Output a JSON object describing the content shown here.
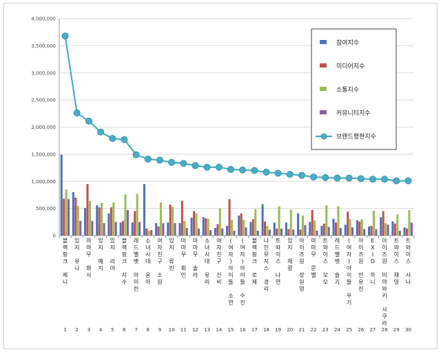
{
  "chart_data": {
    "type": "bar",
    "title": "",
    "xlabel": "",
    "ylabel": "",
    "ylim": [
      0,
      4000000
    ],
    "yticks": [
      "0",
      "500,000",
      "1,000,000",
      "1,500,000",
      "2,000,000",
      "2,500,000",
      "3,000,000",
      "3,500,000",
      "4,000,000"
    ],
    "legend_position": "top-right",
    "grid": true,
    "indices": [
      "1",
      "2",
      "3",
      "4",
      "5",
      "6",
      "7",
      "8",
      "9",
      "10",
      "11",
      "12",
      "13",
      "14",
      "15",
      "16",
      "17",
      "18",
      "19",
      "20",
      "21",
      "22",
      "23",
      "24",
      "25",
      "26",
      "27",
      "28",
      "29",
      "30"
    ],
    "categories": [
      "블랙핑크 제니",
      "있지 유나",
      "마마무 화사",
      "있지 예지",
      "있지 리아",
      "블랙핑크 지수",
      "레드벨벳 아이린",
      "소녀시대 윤아",
      "여자친구 소원",
      "있지 류진",
      "마마무 휘인",
      "마마무 솔라",
      "소녀시대 유리",
      "여자친구 신비",
      "(여자)아이들 소연",
      "(여자)아이들 수진",
      "블랙핑크 로제",
      "나인뮤지스 경리",
      "트와이스 나연",
      "있지 채령",
      "아이즈원 장원영",
      "마마무 문별",
      "트와이스 모모",
      "레드벨벳 슬기",
      "(여자)아이들 우기",
      "아이즈원 안유진",
      "EXID 하니",
      "아이즈원 미야와키 사쿠라",
      "트와이스 채영",
      "트와이스 사나"
    ],
    "series": [
      {
        "name": "참여지수",
        "color": "#4a72b8",
        "kind": "bar",
        "values": [
          1490000,
          800000,
          510000,
          560000,
          410000,
          240000,
          240000,
          950000,
          230000,
          240000,
          230000,
          330000,
          340000,
          140000,
          180000,
          370000,
          250000,
          580000,
          240000,
          240000,
          410000,
          250000,
          180000,
          310000,
          200000,
          280000,
          170000,
          340000,
          260000,
          150000
        ]
      },
      {
        "name": "미디어지수",
        "color": "#c0504d",
        "kind": "bar",
        "values": [
          680000,
          700000,
          950000,
          520000,
          520000,
          270000,
          450000,
          130000,
          170000,
          570000,
          640000,
          450000,
          320000,
          210000,
          670000,
          410000,
          300000,
          260000,
          130000,
          120000,
          110000,
          470000,
          220000,
          240000,
          440000,
          260000,
          180000,
          450000,
          220000,
          130000
        ]
      },
      {
        "name": "소통지수",
        "color": "#9bbb59",
        "kind": "bar",
        "values": [
          850000,
          550000,
          640000,
          600000,
          610000,
          760000,
          770000,
          90000,
          610000,
          530000,
          270000,
          410000,
          310000,
          500000,
          290000,
          290000,
          490000,
          180000,
          540000,
          480000,
          370000,
          280000,
          560000,
          540000,
          300000,
          300000,
          460000,
          230000,
          390000,
          470000
        ]
      },
      {
        "name": "커뮤니티지수",
        "color": "#8064a2",
        "kind": "bar",
        "values": [
          670000,
          270000,
          270000,
          230000,
          250000,
          470000,
          250000,
          100000,
          230000,
          230000,
          140000,
          130000,
          100000,
          130000,
          90000,
          150000,
          90000,
          110000,
          130000,
          110000,
          190000,
          90000,
          160000,
          140000,
          150000,
          120000,
          120000,
          200000,
          90000,
          240000
        ]
      },
      {
        "name": "브랜드평판지수",
        "color": "#4bacc6",
        "kind": "line",
        "values": [
          3680000,
          2260000,
          2110000,
          1910000,
          1790000,
          1770000,
          1490000,
          1410000,
          1390000,
          1350000,
          1330000,
          1290000,
          1260000,
          1260000,
          1220000,
          1210000,
          1200000,
          1170000,
          1150000,
          1130000,
          1110000,
          1080000,
          1070000,
          1060000,
          1060000,
          1050000,
          1040000,
          1040000,
          1010000,
          1010000
        ]
      }
    ]
  }
}
